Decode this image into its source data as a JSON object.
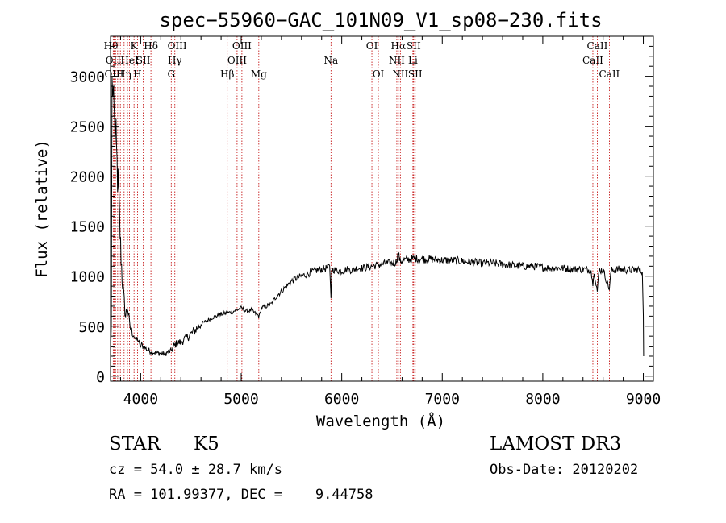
{
  "chart_data": {
    "type": "line",
    "title": "spec−55960−GAC_101N09_V1_sp08−230.fits",
    "xlabel": "Wavelength (Å)",
    "ylabel": "Flux (relative)",
    "xlim": [
      3700,
      9100
    ],
    "ylim": [
      -50,
      3400
    ],
    "x_ticks": [
      4000,
      5000,
      6000,
      7000,
      8000,
      9000
    ],
    "y_ticks": [
      0,
      500,
      1000,
      1500,
      2000,
      2500,
      3000
    ],
    "grid": false,
    "series": [
      {
        "name": "flux",
        "x": [
          3700,
          3708,
          3715,
          3722,
          3730,
          3740,
          3755,
          3770,
          3785,
          3800,
          3815,
          3830,
          3850,
          3870,
          3890,
          3910,
          3930,
          3950,
          3970,
          3990,
          4010,
          4040,
          4070,
          4100,
          4130,
          4160,
          4200,
          4240,
          4270,
          4300,
          4330,
          4360,
          4400,
          4450,
          4500,
          4550,
          4600,
          4650,
          4700,
          4750,
          4800,
          4850,
          4900,
          4950,
          5000,
          5050,
          5100,
          5150,
          5180,
          5200,
          5250,
          5300,
          5350,
          5400,
          5450,
          5500,
          5550,
          5600,
          5650,
          5700,
          5750,
          5800,
          5850,
          5880,
          5893,
          5900,
          5950,
          6000,
          6050,
          6100,
          6150,
          6200,
          6250,
          6300,
          6350,
          6400,
          6450,
          6500,
          6540,
          6563,
          6580,
          6620,
          6680,
          6750,
          6800,
          6900,
          7000,
          7100,
          7200,
          7300,
          7400,
          7500,
          7600,
          7700,
          7800,
          7900,
          8000,
          8100,
          8200,
          8300,
          8400,
          8480,
          8498,
          8510,
          8542,
          8560,
          8600,
          8662,
          8680,
          8750,
          8850,
          8950,
          8990,
          9000,
          9003
        ],
        "values": [
          200,
          500,
          3000,
          2800,
          2900,
          2500,
          2300,
          2000,
          1700,
          1300,
          1000,
          800,
          600,
          700,
          500,
          450,
          420,
          350,
          380,
          300,
          310,
          290,
          260,
          250,
          240,
          230,
          230,
          220,
          240,
          250,
          300,
          330,
          340,
          380,
          420,
          470,
          520,
          550,
          580,
          600,
          620,
          630,
          640,
          660,
          680,
          650,
          660,
          620,
          600,
          680,
          700,
          720,
          800,
          850,
          900,
          950,
          980,
          1000,
          1020,
          1040,
          1060,
          1070,
          1080,
          1100,
          780,
          1070,
          1060,
          1050,
          1070,
          1060,
          1080,
          1080,
          1090,
          1100,
          1110,
          1120,
          1130,
          1130,
          1140,
          1230,
          1150,
          1160,
          1170,
          1180,
          1170,
          1170,
          1160,
          1160,
          1150,
          1140,
          1130,
          1130,
          1120,
          1110,
          1100,
          1100,
          1090,
          1080,
          1080,
          1070,
          1070,
          1060,
          900,
          1060,
          850,
          1060,
          1060,
          870,
          1060,
          1070,
          1060,
          1070,
          1040,
          600,
          200
        ]
      }
    ],
    "line_markers": [
      {
        "x": 3704,
        "label": "Hθ",
        "row": 0
      },
      {
        "x": 3727,
        "label": "OII",
        "row": 1
      },
      {
        "x": 3736,
        "label": "OIII",
        "row": 2
      },
      {
        "x": 3750,
        "label": "",
        "row": 0
      },
      {
        "x": 3771,
        "label": "",
        "row": 0
      },
      {
        "x": 3798,
        "label": "",
        "row": 0
      },
      {
        "x": 3835,
        "label": "Hη",
        "row": 2
      },
      {
        "x": 3869,
        "label": "",
        "row": 0
      },
      {
        "x": 3889,
        "label": "HeI",
        "row": 1
      },
      {
        "x": 3934,
        "label": "K",
        "row": 0
      },
      {
        "x": 3969,
        "label": "H",
        "row": 2
      },
      {
        "x": 4026,
        "label": "SII",
        "row": 1
      },
      {
        "x": 4102,
        "label": "Hδ",
        "row": 0
      },
      {
        "x": 4304,
        "label": "G",
        "row": 2
      },
      {
        "x": 4340,
        "label": "Hγ",
        "row": 1
      },
      {
        "x": 4363,
        "label": "OIII",
        "row": 0
      },
      {
        "x": 4861,
        "label": "Hβ",
        "row": 2
      },
      {
        "x": 4959,
        "label": "OIII",
        "row": 1
      },
      {
        "x": 5007,
        "label": "OIII",
        "row": 0
      },
      {
        "x": 5175,
        "label": "Mg",
        "row": 2
      },
      {
        "x": 5893,
        "label": "Na",
        "row": 1
      },
      {
        "x": 6300,
        "label": "OI",
        "row": 0
      },
      {
        "x": 6364,
        "label": "OI",
        "row": 2
      },
      {
        "x": 6548,
        "label": "NII",
        "row": 1
      },
      {
        "x": 6563,
        "label": "Hα",
        "row": 0
      },
      {
        "x": 6583,
        "label": "NII",
        "row": 2
      },
      {
        "x": 6708,
        "label": "Li",
        "row": 1
      },
      {
        "x": 6716,
        "label": "SII",
        "row": 0
      },
      {
        "x": 6731,
        "label": "SII",
        "row": 2
      },
      {
        "x": 8498,
        "label": "CaII",
        "row": 1
      },
      {
        "x": 8542,
        "label": "CaII",
        "row": 0
      },
      {
        "x": 8662,
        "label": "CaII",
        "row": 2
      }
    ]
  },
  "info": {
    "class_label": "STAR",
    "subclass": "K5",
    "survey": "LAMOST DR3",
    "cz": "cz = 54.0 ± 28.7 km/s",
    "obs_date": "Obs-Date: 20120202",
    "radec": "RA = 101.99377, DEC =    9.44758"
  },
  "colors": {
    "line": "#000000",
    "marker": "#c00000",
    "axis": "#000000",
    "background": "#ffffff"
  }
}
